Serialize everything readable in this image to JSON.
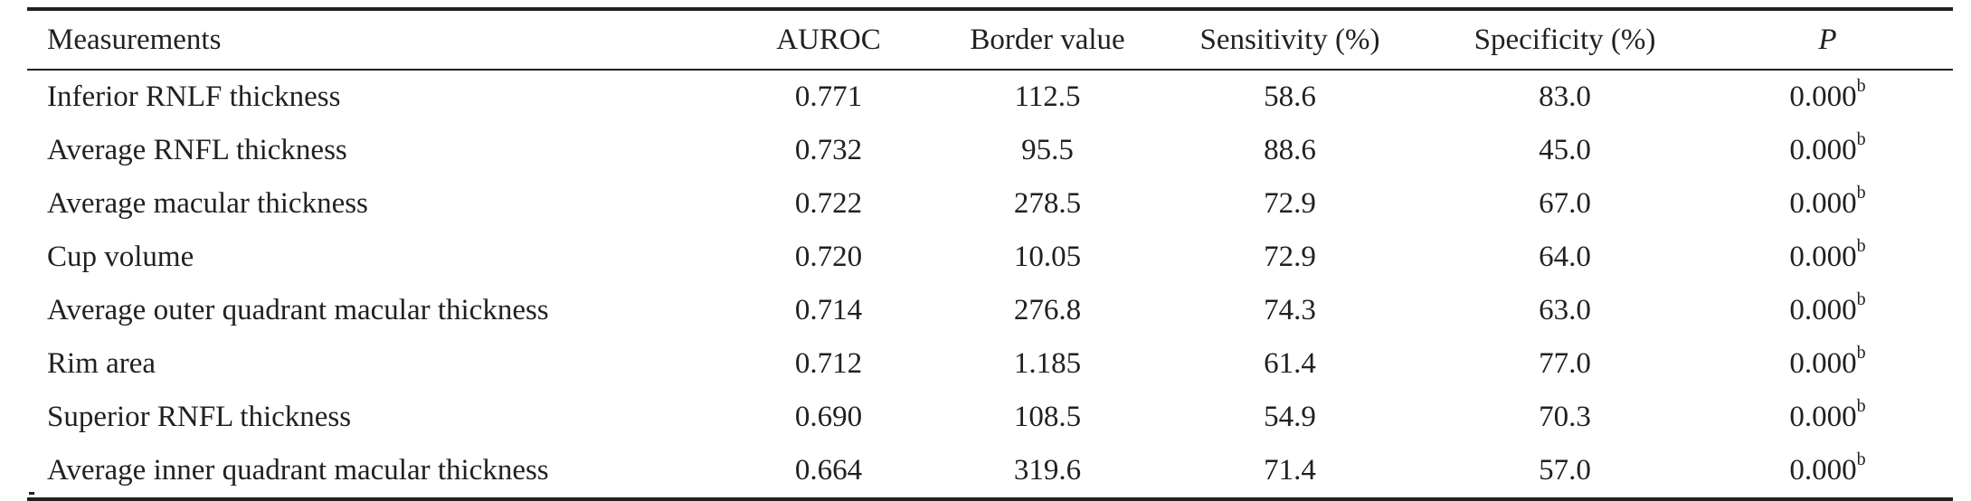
{
  "table": {
    "headers": {
      "measurements": "Measurements",
      "auroc": "AUROC",
      "border_value": "Border value",
      "sensitivity": "Sensitivity (%)",
      "specificity": "Specificity (%)",
      "p": "P"
    },
    "rows": [
      {
        "measurement": "Inferior RNLF thickness",
        "auroc": "0.771",
        "border_value": "112.5",
        "sensitivity": "58.6",
        "specificity": "83.0",
        "p": "0.000",
        "p_sup": "b"
      },
      {
        "measurement": "Average RNFL thickness",
        "auroc": "0.732",
        "border_value": "95.5",
        "sensitivity": "88.6",
        "specificity": "45.0",
        "p": "0.000",
        "p_sup": "b"
      },
      {
        "measurement": "Average macular thickness",
        "auroc": "0.722",
        "border_value": "278.5",
        "sensitivity": "72.9",
        "specificity": "67.0",
        "p": "0.000",
        "p_sup": "b"
      },
      {
        "measurement": "Cup volume",
        "auroc": "0.720",
        "border_value": "10.05",
        "sensitivity": "72.9",
        "specificity": "64.0",
        "p": "0.000",
        "p_sup": "b"
      },
      {
        "measurement": "Average outer quadrant macular thickness",
        "auroc": "0.714",
        "border_value": "276.8",
        "sensitivity": "74.3",
        "specificity": "63.0",
        "p": "0.000",
        "p_sup": "b"
      },
      {
        "measurement": "Rim area",
        "auroc": "0.712",
        "border_value": "1.185",
        "sensitivity": "61.4",
        "specificity": "77.0",
        "p": "0.000",
        "p_sup": "b"
      },
      {
        "measurement": "Superior RNFL thickness",
        "auroc": "0.690",
        "border_value": "108.5",
        "sensitivity": "54.9",
        "specificity": "70.3",
        "p": "0.000",
        "p_sup": "b"
      },
      {
        "measurement": "Average inner quadrant macular thickness",
        "auroc": "0.664",
        "border_value": "319.6",
        "sensitivity": "71.4",
        "specificity": "57.0",
        "p": "0.000",
        "p_sup": "b"
      }
    ]
  }
}
